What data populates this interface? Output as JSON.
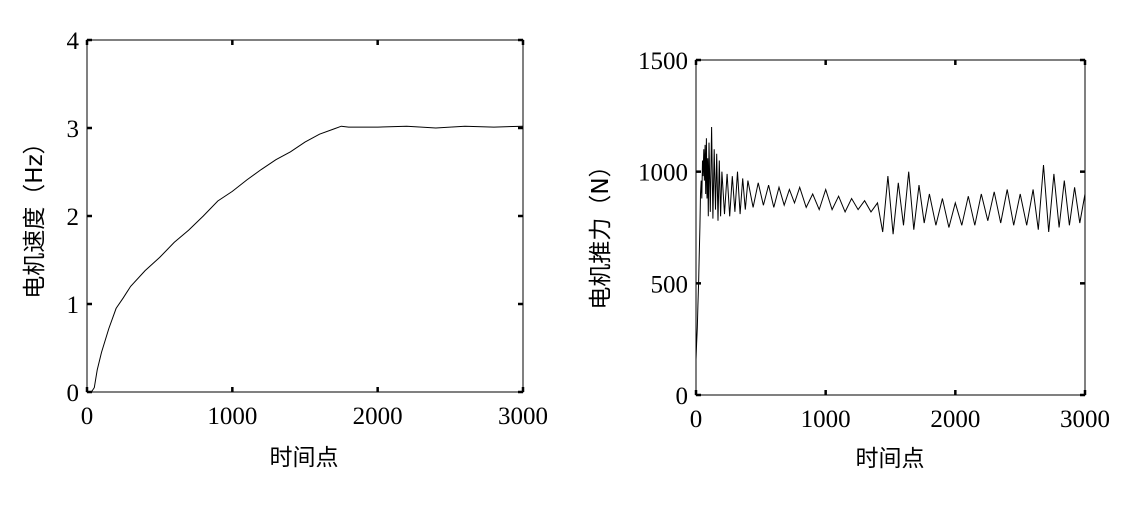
{
  "chart_data": [
    {
      "type": "line",
      "title": "",
      "xlabel": "时间点",
      "ylabel": "电机速度（Hz）",
      "xlim": [
        0,
        3000
      ],
      "ylim": [
        0,
        4
      ],
      "xticks": [
        0,
        1000,
        2000,
        3000
      ],
      "xtick_labels": [
        "0",
        "1000",
        "2000",
        "3000"
      ],
      "yticks": [
        0,
        1,
        2,
        3,
        4
      ],
      "ytick_labels": [
        "0",
        "1",
        "2",
        "3",
        "4"
      ],
      "grid": false,
      "legend": "none",
      "series": [
        {
          "x": [
            0,
            30,
            50,
            70,
            100,
            150,
            200,
            250,
            300,
            400,
            500,
            600,
            700,
            800,
            900,
            1000,
            1100,
            1200,
            1300,
            1400,
            1500,
            1600,
            1700,
            1750,
            1800,
            2000,
            2200,
            2400,
            2600,
            2800,
            3000
          ],
          "values": [
            0,
            0,
            0.05,
            0.25,
            0.45,
            0.72,
            0.95,
            1.07,
            1.2,
            1.38,
            1.53,
            1.7,
            1.84,
            2.0,
            2.17,
            2.28,
            2.41,
            2.53,
            2.64,
            2.73,
            2.84,
            2.93,
            2.99,
            3.02,
            3.01,
            3.01,
            3.02,
            3.0,
            3.02,
            3.01,
            3.02
          ]
        }
      ]
    },
    {
      "type": "line",
      "title": "",
      "xlabel": "时间点",
      "ylabel": "电机推力（N）",
      "xlim": [
        0,
        3000
      ],
      "ylim": [
        0,
        1500
      ],
      "xticks": [
        0,
        1000,
        2000,
        3000
      ],
      "xtick_labels": [
        "0",
        "1000",
        "2000",
        "3000"
      ],
      "yticks": [
        0,
        500,
        1000,
        1500
      ],
      "ytick_labels": [
        "0",
        "500",
        "1000",
        "1500"
      ],
      "grid": false,
      "legend": "none",
      "series": [
        {
          "x": [
            0,
            5,
            10,
            15,
            20,
            25,
            30,
            35,
            40,
            45,
            50,
            55,
            60,
            65,
            70,
            75,
            80,
            85,
            90,
            95,
            100,
            110,
            120,
            130,
            140,
            150,
            160,
            170,
            180,
            190,
            200,
            220,
            240,
            260,
            280,
            300,
            320,
            340,
            360,
            380,
            400,
            440,
            480,
            520,
            560,
            600,
            640,
            680,
            720,
            760,
            800,
            850,
            900,
            950,
            1000,
            1050,
            1100,
            1150,
            1200,
            1250,
            1300,
            1350,
            1400,
            1440,
            1480,
            1520,
            1560,
            1600,
            1640,
            1680,
            1720,
            1760,
            1800,
            1850,
            1900,
            1950,
            2000,
            2050,
            2100,
            2150,
            2200,
            2250,
            2300,
            2350,
            2400,
            2450,
            2500,
            2550,
            2600,
            2640,
            2680,
            2720,
            2760,
            2800,
            2840,
            2880,
            2920,
            2960,
            3000
          ],
          "values": [
            160,
            230,
            300,
            400,
            500,
            620,
            750,
            900,
            960,
            880,
            1050,
            980,
            1100,
            960,
            1120,
            900,
            1150,
            880,
            1060,
            800,
            1130,
            820,
            1200,
            790,
            1100,
            830,
            1080,
            780,
            1050,
            800,
            1000,
            810,
            990,
            800,
            980,
            820,
            1000,
            810,
            970,
            830,
            960,
            840,
            950,
            850,
            940,
            840,
            930,
            850,
            920,
            860,
            930,
            840,
            900,
            830,
            920,
            830,
            890,
            820,
            880,
            830,
            870,
            820,
            860,
            730,
            980,
            720,
            950,
            760,
            1000,
            740,
            940,
            770,
            900,
            760,
            880,
            750,
            860,
            760,
            890,
            760,
            900,
            780,
            910,
            770,
            920,
            760,
            900,
            760,
            920,
            740,
            1030,
            730,
            990,
            750,
            960,
            760,
            930,
            770,
            900
          ]
        }
      ]
    }
  ]
}
